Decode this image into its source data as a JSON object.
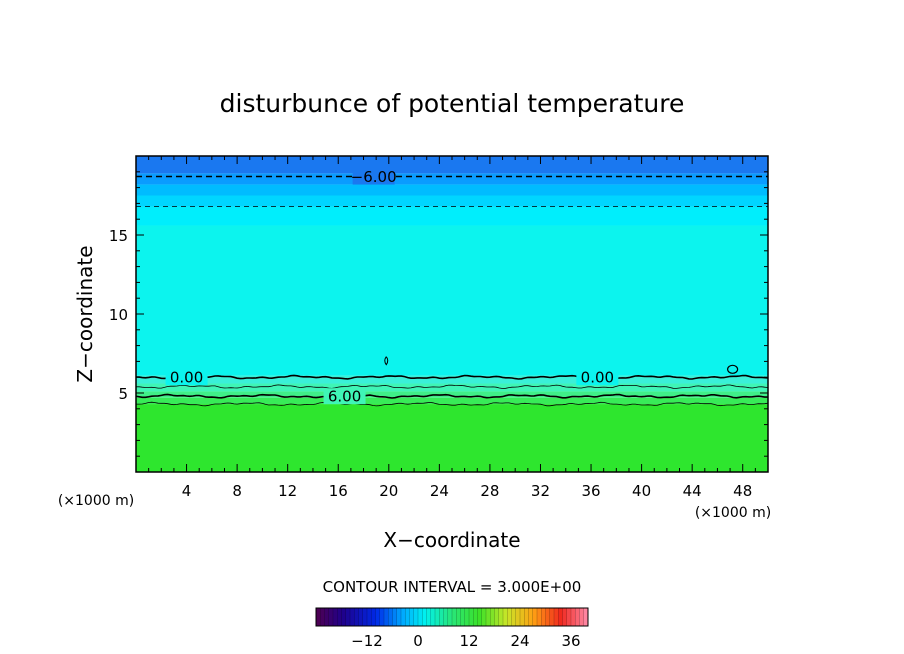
{
  "chart_data": {
    "type": "heatmap",
    "title": "disturbunce of potential temperature",
    "xlabel": "X−coordinate",
    "ylabel": "Z−coordinate",
    "x_unit_left": "(×1000 m)",
    "x_unit_right": "(×1000 m)",
    "xlim": [
      0,
      50
    ],
    "ylim": [
      0,
      20
    ],
    "x_ticks": [
      4,
      8,
      12,
      16,
      20,
      24,
      28,
      32,
      36,
      40,
      44,
      48
    ],
    "y_ticks": [
      5,
      10,
      15
    ],
    "x_tick_labels": [
      "4",
      "8",
      "12",
      "16",
      "20",
      "24",
      "28",
      "32",
      "36",
      "40",
      "44",
      "48"
    ],
    "y_tick_labels": [
      "5",
      "10",
      "15"
    ],
    "contour_labels": [
      {
        "text": "−6.00",
        "x": 18.8,
        "z": 18.7
      },
      {
        "text": "0.00",
        "x": 4.0,
        "z": 6.0
      },
      {
        "text": "0.00",
        "x": 36.5,
        "z": 6.0
      },
      {
        "text": "6.00",
        "x": 16.5,
        "z": 4.8
      }
    ],
    "bands": [
      {
        "z0": 0.0,
        "z1": 4.3,
        "color": "#2ee62e"
      },
      {
        "z0": 4.3,
        "z1": 4.7,
        "color": "#38eb58"
      },
      {
        "z0": 4.7,
        "z1": 5.1,
        "color": "#40ef88"
      },
      {
        "z0": 5.1,
        "z1": 5.6,
        "color": "#3ff5b6"
      },
      {
        "z0": 5.6,
        "z1": 6.1,
        "color": "#3af0d8"
      },
      {
        "z0": 6.1,
        "z1": 15.6,
        "color": "#0cf4ee"
      },
      {
        "z0": 15.6,
        "z1": 16.8,
        "color": "#00eefc"
      },
      {
        "z0": 16.8,
        "z1": 17.5,
        "color": "#00d6ff"
      },
      {
        "z0": 17.5,
        "z1": 18.2,
        "color": "#00bcff"
      },
      {
        "z0": 18.2,
        "z1": 18.9,
        "color": "#0a9cff"
      },
      {
        "z0": 18.9,
        "z1": 20.0,
        "color": "#1a78f0"
      }
    ],
    "contours": [
      {
        "level": -6,
        "z": 18.7,
        "style": "dashed-thick"
      },
      {
        "level": -3,
        "z": 16.8,
        "style": "dashed-thin"
      },
      {
        "level": 0,
        "z": 6.0,
        "style": "solid-thick"
      },
      {
        "level": 3,
        "z": 5.4,
        "style": "solid-thin"
      },
      {
        "level": 6,
        "z": 4.8,
        "style": "solid-thick"
      },
      {
        "level": 9,
        "z": 4.3,
        "style": "solid-thin"
      }
    ],
    "contour_interval_text": "CONTOUR INTERVAL = 3.000E+00",
    "colorbar": {
      "min": -24,
      "max": 40,
      "ticks": [
        -12,
        0,
        12,
        24,
        36
      ],
      "tick_labels": [
        "−12",
        "0",
        "12",
        "24",
        "36"
      ]
    }
  }
}
